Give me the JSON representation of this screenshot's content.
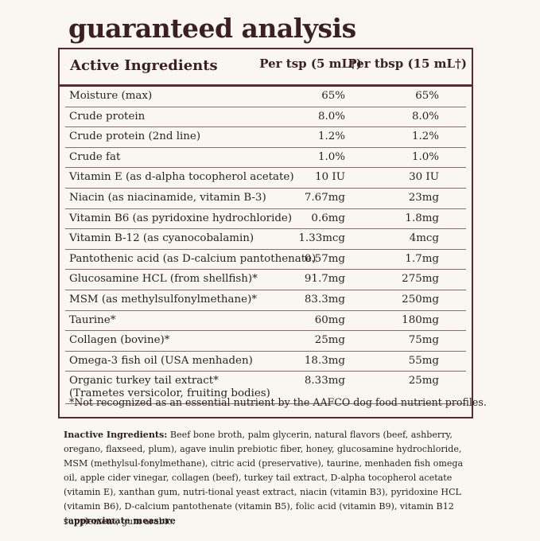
{
  "title": "guaranteed analysis",
  "table": {
    "headers": {
      "name": "Active Ingredients",
      "col1": "Per tsp (5 mL†)",
      "col2": "Per tbsp (15 mL†)"
    },
    "rows": [
      {
        "name": "Moisture (max)",
        "v1": "65%",
        "v2": "65%"
      },
      {
        "name": "Crude protein",
        "v1": "8.0%",
        "v2": "8.0%"
      },
      {
        "name": "Crude protein (2nd line)",
        "v1": "1.2%",
        "v2": "1.2%"
      },
      {
        "name": "Crude fat",
        "v1": "1.0%",
        "v2": "1.0%"
      },
      {
        "name": "Vitamin E (as d-alpha tocopherol acetate)",
        "v1": "10 IU",
        "v2": "30 IU"
      },
      {
        "name": "Niacin (as niacinamide, vitamin B-3)",
        "v1": "7.67mg",
        "v2": "23mg"
      },
      {
        "name": "Vitamin B6 (as pyridoxine hydrochloride)",
        "v1": "0.6mg",
        "v2": "1.8mg"
      },
      {
        "name": "Vitamin B-12 (as cyanocobalamin)",
        "v1": "1.33mcg",
        "v2": "4mcg"
      },
      {
        "name": "Pantothenic acid (as D-calcium pantothenate)",
        "v1": "0.57mg",
        "v2": "1.7mg"
      },
      {
        "name": "Glucosamine HCL (from shellfish)*",
        "v1": "91.7mg",
        "v2": "275mg"
      },
      {
        "name": "MSM (as methylsulfonylmethane)*",
        "v1": "83.3mg",
        "v2": "250mg"
      },
      {
        "name": "Taurine*",
        "v1": "60mg",
        "v2": "180mg"
      },
      {
        "name": "Collagen (bovine)*",
        "v1": "25mg",
        "v2": "75mg"
      },
      {
        "name": "Omega-3 fish oil (USA menhaden)",
        "v1": "18.3mg",
        "v2": "55mg"
      },
      {
        "name": "Organic turkey tail extract* (Trametes versicolor, fruiting bodies)",
        "v1": "8.33mg",
        "v2": "25mg"
      }
    ],
    "footnote": "*Not recognized as an essential nutrient by the AAFCO dog food nutrient profiles."
  },
  "inactive": {
    "label": "Inactive Ingredients:",
    "text": " Beef bone broth,  palm glycerin, natural flavors (beef, ashberry, oregano, flaxseed, plum), agave inulin prebiotic fiber, honey, glucosamine hydrochloride, MSM (methylsul-fonylmethane), citric acid (preservative), taurine, menhaden fish omega oil, apple cider vinegar, collagen (beef), turkey tail extract, D-alpha tocopherol acetate (vitamin E), xanthan gum, nutri-tional yeast extract, niacin (vitamin B3), pyridoxine HCL (vitamin B6), D-calcium pantothenate (vitamin B5), folic acid (vitamin B9), vitamin B12 supplement, gum arabic."
  },
  "approx_note": "†approximate measure"
}
